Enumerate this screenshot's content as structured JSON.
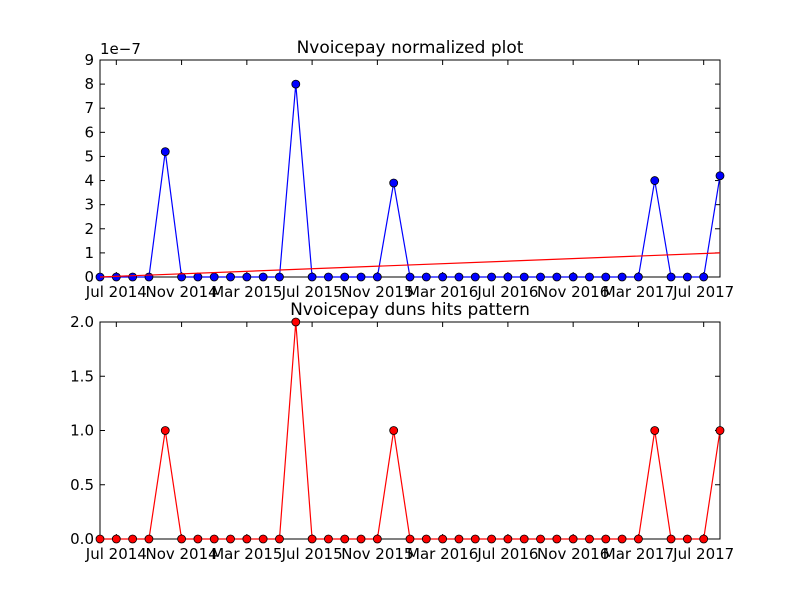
{
  "chart_data": [
    {
      "type": "line",
      "title": "Nvoicepay normalized plot",
      "multiplier_label": "1e−7",
      "xlabel": "",
      "ylabel": "",
      "ylim": [
        0,
        9
      ],
      "yticks": [
        0,
        1,
        2,
        3,
        4,
        5,
        6,
        7,
        8,
        9
      ],
      "ytick_labels": [
        "0",
        "1",
        "2",
        "3",
        "4",
        "5",
        "6",
        "7",
        "8",
        "9"
      ],
      "x_tick_labels": [
        "Jul 2014",
        "Nov 2014",
        "Mar 2015",
        "Jul 2015",
        "Nov 2015",
        "Mar 2016",
        "Jul 2016",
        "Nov 2016",
        "Mar 2017",
        "Jul 2017"
      ],
      "x_tick_month_index": [
        0,
        4,
        8,
        12,
        16,
        20,
        24,
        28,
        32,
        36
      ],
      "grid": false,
      "series": [
        {
          "color": "#0000ff",
          "marker": "circle",
          "x": [
            "2014-06",
            "2014-07",
            "2014-08",
            "2014-09",
            "2014-10",
            "2014-11",
            "2014-12",
            "2015-01",
            "2015-02",
            "2015-03",
            "2015-04",
            "2015-05",
            "2015-06",
            "2015-07",
            "2015-08",
            "2015-09",
            "2015-10",
            "2015-11",
            "2015-12",
            "2016-01",
            "2016-02",
            "2016-03",
            "2016-04",
            "2016-05",
            "2016-06",
            "2016-07",
            "2016-08",
            "2016-09",
            "2016-10",
            "2016-11",
            "2016-12",
            "2017-01",
            "2017-02",
            "2017-03",
            "2017-04",
            "2017-05",
            "2017-06",
            "2017-07",
            "2017-08"
          ],
          "values": [
            0,
            0,
            0,
            0,
            5.2,
            0,
            0,
            0,
            0,
            0,
            0,
            0,
            8.0,
            0,
            0,
            0,
            0,
            0,
            3.9,
            0,
            0,
            0,
            0,
            0,
            0,
            0,
            0,
            0,
            0,
            0,
            0,
            0,
            0,
            0,
            4.0,
            0,
            0,
            0,
            4.2
          ]
        },
        {
          "color": "#ff0000",
          "marker": "none",
          "x": [
            "2014-06",
            "2017-08"
          ],
          "values": [
            0,
            1.0
          ]
        }
      ]
    },
    {
      "type": "line",
      "title": "Nvoicepay duns hits pattern",
      "xlabel": "",
      "ylabel": "",
      "ylim": [
        0,
        2
      ],
      "yticks": [
        0,
        0.5,
        1,
        1.5,
        2
      ],
      "ytick_labels": [
        "0.0",
        "0.5",
        "1.0",
        "1.5",
        "2.0"
      ],
      "x_tick_labels": [
        "Jul 2014",
        "Nov 2014",
        "Mar 2015",
        "Jul 2015",
        "Nov 2015",
        "Mar 2016",
        "Jul 2016",
        "Nov 2016",
        "Mar 2017",
        "Jul 2017"
      ],
      "x_tick_month_index": [
        0,
        4,
        8,
        12,
        16,
        20,
        24,
        28,
        32,
        36
      ],
      "grid": false,
      "series": [
        {
          "color": "#ff0000",
          "marker": "circle",
          "x": [
            "2014-06",
            "2014-07",
            "2014-08",
            "2014-09",
            "2014-10",
            "2014-11",
            "2014-12",
            "2015-01",
            "2015-02",
            "2015-03",
            "2015-04",
            "2015-05",
            "2015-06",
            "2015-07",
            "2015-08",
            "2015-09",
            "2015-10",
            "2015-11",
            "2015-12",
            "2016-01",
            "2016-02",
            "2016-03",
            "2016-04",
            "2016-05",
            "2016-06",
            "2016-07",
            "2016-08",
            "2016-09",
            "2016-10",
            "2016-11",
            "2016-12",
            "2017-01",
            "2017-02",
            "2017-03",
            "2017-04",
            "2017-05",
            "2017-06",
            "2017-07",
            "2017-08"
          ],
          "values": [
            0,
            0,
            0,
            0,
            1,
            0,
            0,
            0,
            0,
            0,
            0,
            0,
            2,
            0,
            0,
            0,
            0,
            0,
            1,
            0,
            0,
            0,
            0,
            0,
            0,
            0,
            0,
            0,
            0,
            0,
            0,
            0,
            0,
            0,
            1,
            0,
            0,
            0,
            1
          ]
        }
      ]
    }
  ]
}
